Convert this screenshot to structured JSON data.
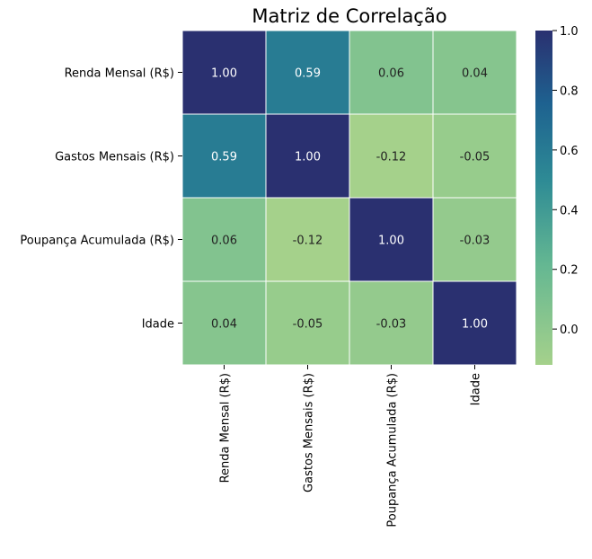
{
  "chart_data": {
    "type": "heatmap",
    "title": "Matriz de Correlação",
    "x_labels": [
      "Renda Mensal (R$)",
      "Gastos Mensais (R$)",
      "Poupança Acumulada (R$)",
      "Idade"
    ],
    "y_labels": [
      "Renda Mensal (R$)",
      "Gastos Mensais (R$)",
      "Poupança Acumulada (R$)",
      "Idade"
    ],
    "values": [
      [
        1.0,
        0.59,
        0.06,
        0.04
      ],
      [
        0.59,
        1.0,
        -0.12,
        -0.05
      ],
      [
        0.06,
        -0.12,
        1.0,
        -0.03
      ],
      [
        0.04,
        -0.05,
        -0.03,
        1.0
      ]
    ],
    "value_format": "0.00",
    "colormap": "crest",
    "color_range": [
      -0.12,
      1.0
    ],
    "colorbar_ticks": [
      "0.0",
      "0.2",
      "0.4",
      "0.6",
      "0.8",
      "1.0"
    ],
    "colors": {
      "low": "#a5d18b",
      "mid_low": "#64b792",
      "mid": "#2e8b95",
      "mid_high": "#1e6290",
      "high": "#2a3070",
      "grid_line": "#ffffff"
    }
  }
}
